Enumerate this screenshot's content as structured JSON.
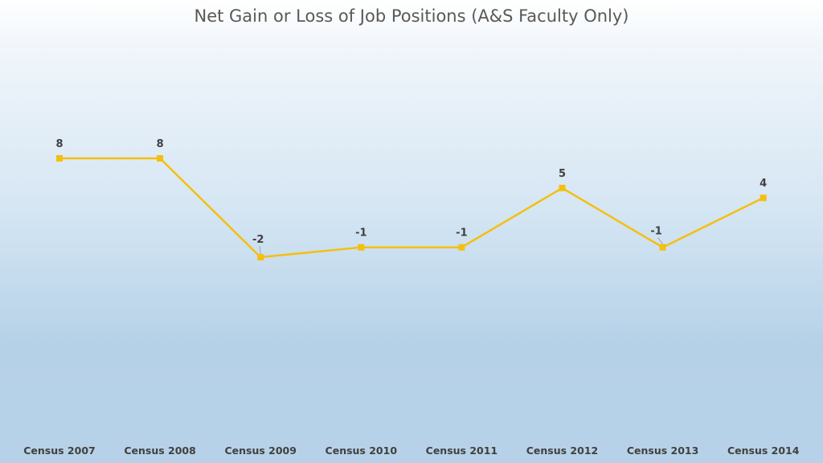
{
  "chart_data": {
    "type": "line",
    "title": "Net Gain or Loss of Job Positions (A&S Faculty Only)",
    "xlabel": "",
    "ylabel": "",
    "categories": [
      "Census 2007",
      "Census 2008",
      "Census 2009",
      "Census 2010",
      "Census 2011",
      "Census 2012",
      "Census 2013",
      "Census 2014"
    ],
    "series": [
      {
        "values": [
          8,
          8,
          -2,
          -1,
          -1,
          5,
          -1,
          4
        ],
        "color": "#F5BF0F"
      }
    ],
    "grid": false,
    "legend": "none",
    "data_labels": true,
    "marker": "square"
  }
}
